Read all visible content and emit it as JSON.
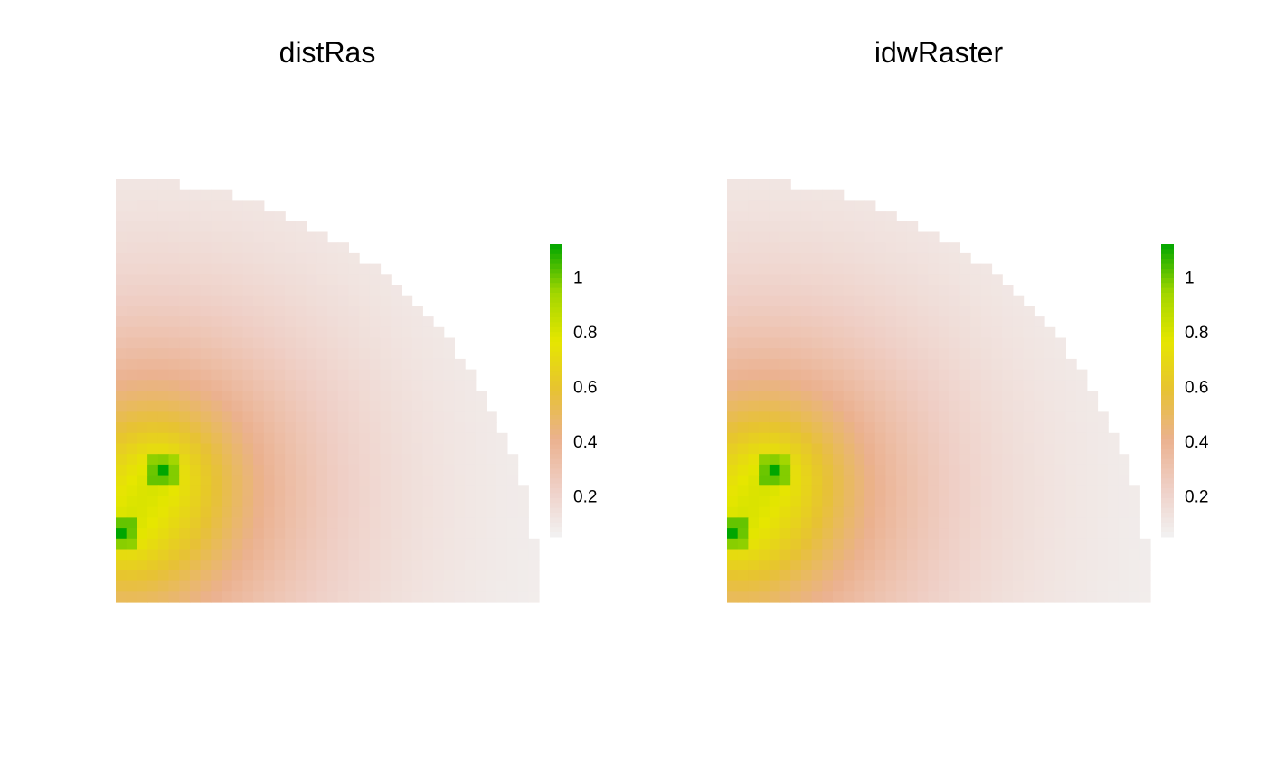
{
  "chart_data": [
    {
      "type": "heatmap",
      "title": "distRas",
      "xlabel": "",
      "ylabel": "",
      "grid": false,
      "legend_position": "right",
      "colorbar": {
        "range": [
          0.05,
          1.12
        ],
        "ticks": [
          1,
          0.8,
          0.6,
          0.4,
          0.2
        ],
        "tick_labels": [
          "1",
          "0.8",
          "0.6",
          "0.4",
          "0.2"
        ],
        "palette": [
          "#f2f2f2",
          "#efcfc6",
          "#ebb18f",
          "#e7c233",
          "#e6e600",
          "#a2d600",
          "#00a600"
        ]
      },
      "raster": {
        "cols": 40,
        "rows": 40,
        "boundary": "quarter-circle",
        "points": [
          {
            "col": 4.5,
            "row": 27.5,
            "value": 1.1
          },
          {
            "col": 0.5,
            "row": 33.5,
            "value": 1.1
          }
        ]
      }
    },
    {
      "type": "heatmap",
      "title": "idwRaster",
      "xlabel": "",
      "ylabel": "",
      "grid": false,
      "legend_position": "right",
      "colorbar": {
        "range": [
          0.05,
          1.12
        ],
        "ticks": [
          1,
          0.8,
          0.6,
          0.4,
          0.2
        ],
        "tick_labels": [
          "1",
          "0.8",
          "0.6",
          "0.4",
          "0.2"
        ],
        "palette": [
          "#f2f2f2",
          "#efcfc6",
          "#ebb18f",
          "#e7c233",
          "#e6e600",
          "#a2d600",
          "#00a600"
        ]
      },
      "raster": {
        "cols": 40,
        "rows": 40,
        "boundary": "quarter-circle",
        "points": [
          {
            "col": 4.5,
            "row": 27.5,
            "value": 1.1
          },
          {
            "col": 0.5,
            "row": 33.5,
            "value": 1.1
          }
        ]
      }
    }
  ]
}
